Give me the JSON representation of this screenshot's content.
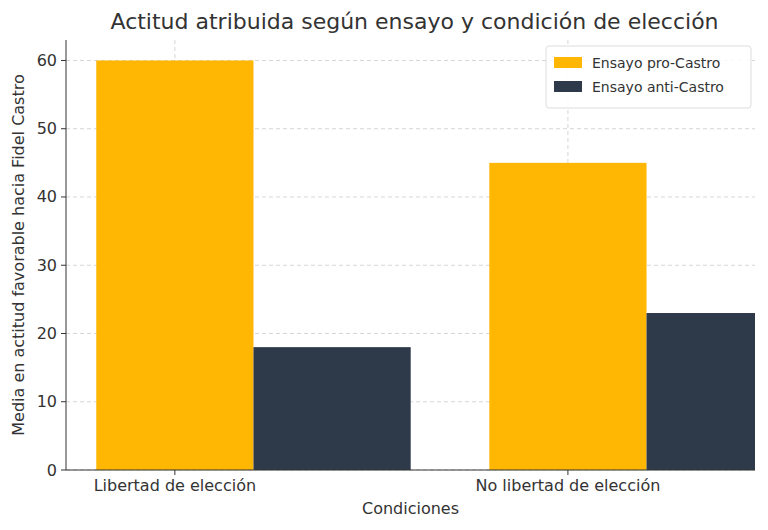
{
  "chart_data": {
    "type": "bar",
    "title": "Actitud atribuida según ensayo y condición de elección",
    "x_label": "Condiciones",
    "y_label": "Media en actitud favorable hacia Fidel Castro",
    "categories": [
      "Libertad de elección",
      "No libertad de elección"
    ],
    "series": [
      {
        "name": "Ensayo pro-Castro",
        "color": "#ffb703",
        "values": [
          60,
          45
        ]
      },
      {
        "name": "Ensayo anti-Castro",
        "color": "#2e3a4a",
        "values": [
          18,
          23
        ]
      }
    ],
    "ylim": [
      0,
      63
    ],
    "yticks": [
      0,
      10,
      20,
      30,
      40,
      50,
      60
    ],
    "grid": true,
    "legend": "upper-right"
  }
}
